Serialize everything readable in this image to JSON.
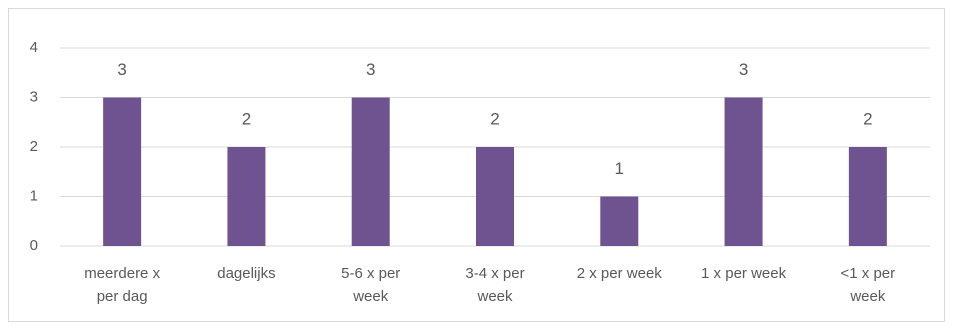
{
  "chart_data": {
    "type": "bar",
    "categories": [
      "meerdere x per dag",
      "dagelijks",
      "5-6 x per week",
      "3-4 x per week",
      "2 x per week",
      "1 x per week",
      "<1 x per week"
    ],
    "values": [
      3,
      2,
      3,
      2,
      1,
      3,
      2
    ],
    "color": "#6e5390",
    "ylim": [
      0,
      4
    ],
    "yticks": [
      0,
      1,
      2,
      3,
      4
    ],
    "grid": true
  }
}
